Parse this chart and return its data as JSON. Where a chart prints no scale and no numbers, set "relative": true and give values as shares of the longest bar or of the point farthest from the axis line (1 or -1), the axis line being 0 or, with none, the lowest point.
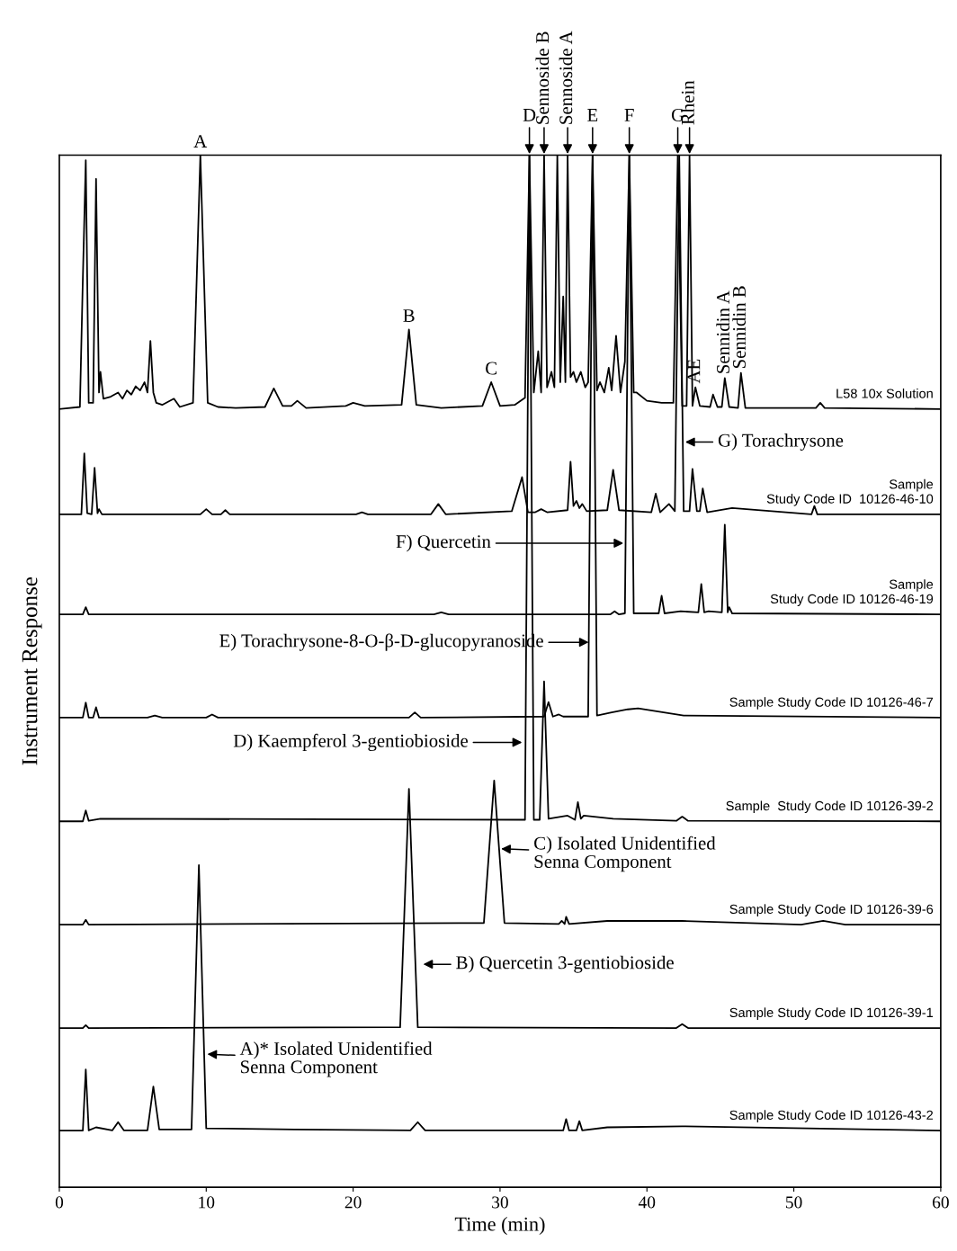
{
  "chart_data": {
    "type": "line",
    "relative": true,
    "xlabel": "Time (min)",
    "ylabel": "Instrument Response",
    "xlim": [
      0,
      60
    ],
    "xticks": [
      0,
      10,
      20,
      30,
      40,
      50,
      60
    ],
    "grid": false,
    "legend": false,
    "marker": "none",
    "line_style": "solid",
    "series": [
      {
        "name": "L58 10x Solution",
        "color": "#000000",
        "x": [
          0,
          1.4,
          1.6,
          1.8,
          2.0,
          2.3,
          2.5,
          2.7,
          2.8,
          3.0,
          3.5,
          4.0,
          4.3,
          4.6,
          4.9,
          5.2,
          5.5,
          5.8,
          6.0,
          6.2,
          6.4,
          6.6,
          7.0,
          7.8,
          8.2,
          9.1,
          9.6,
          10.1,
          10.8,
          12,
          14.0,
          14.6,
          15.2,
          15.8,
          16.2,
          16.8,
          19.5,
          20.0,
          20.8,
          23.3,
          23.8,
          24.3,
          26,
          28.8,
          29.4,
          30.0,
          31.0,
          31.7,
          32.0,
          32.3,
          32.6,
          32.8,
          33.0,
          33.2,
          33.5,
          33.7,
          33.9,
          34.1,
          34.3,
          34.45,
          34.6,
          34.8,
          35.0,
          35.2,
          35.5,
          35.8,
          36.0,
          36.3,
          36.6,
          36.8,
          37.1,
          37.4,
          37.6,
          37.9,
          38.2,
          38.5,
          38.8,
          39.1,
          39.3,
          40,
          41,
          41.8,
          42.1,
          42.4,
          42.7,
          42.9,
          43.1,
          43.3,
          43.6,
          44.3,
          44.5,
          44.8,
          45.1,
          45.3,
          45.6,
          46.2,
          46.4,
          46.7,
          51.5,
          51.8,
          52.1,
          60
        ],
        "values": [
          0.754,
          0.756,
          0.88,
          0.995,
          0.76,
          0.76,
          0.977,
          0.77,
          0.79,
          0.764,
          0.766,
          0.77,
          0.764,
          0.772,
          0.768,
          0.776,
          0.772,
          0.78,
          0.77,
          0.82,
          0.77,
          0.76,
          0.758,
          0.764,
          0.756,
          0.76,
          1.0,
          0.76,
          0.756,
          0.755,
          0.756,
          0.774,
          0.757,
          0.757,
          0.762,
          0.755,
          0.757,
          0.76,
          0.757,
          0.758,
          0.831,
          0.758,
          0.755,
          0.757,
          0.78,
          0.757,
          0.758,
          0.765,
          1.0,
          0.77,
          0.81,
          0.77,
          1.0,
          0.775,
          0.79,
          0.775,
          1.0,
          0.78,
          0.863,
          0.78,
          1.0,
          0.785,
          0.79,
          0.78,
          0.79,
          0.775,
          0.78,
          1.0,
          0.772,
          0.78,
          0.77,
          0.794,
          0.772,
          0.825,
          0.77,
          0.8,
          1.0,
          0.77,
          0.77,
          0.762,
          0.76,
          0.76,
          1.0,
          0.757,
          0.757,
          1.0,
          0.757,
          0.775,
          0.757,
          0.756,
          0.768,
          0.756,
          0.756,
          0.784,
          0.756,
          0.755,
          0.789,
          0.755,
          0.755,
          0.76,
          0.755,
          0.754
        ]
      },
      {
        "name": "Sample\nStudy Code ID  10126-46-10",
        "color": "#000000",
        "x": [
          0,
          1.5,
          1.7,
          1.9,
          2.2,
          2.4,
          2.6,
          2.7,
          2.9,
          9.6,
          10.0,
          10.4,
          11.0,
          11.3,
          11.6,
          20.2,
          20.6,
          21.0,
          25.3,
          25.8,
          26.3,
          30.8,
          31.5,
          31.9,
          32.4,
          32.8,
          33.2,
          34.6,
          34.8,
          35.0,
          35.2,
          35.4,
          35.6,
          35.9,
          37.3,
          37.7,
          38.1,
          40.3,
          40.6,
          40.9,
          41.5,
          41.9,
          42.2,
          42.5,
          42.9,
          43.1,
          43.4,
          43.6,
          43.8,
          44.1,
          45.8,
          51.2,
          51.4,
          51.6,
          60
        ],
        "values": [
          0.652,
          0.652,
          0.711,
          0.653,
          0.652,
          0.697,
          0.653,
          0.657,
          0.652,
          0.652,
          0.657,
          0.652,
          0.652,
          0.656,
          0.652,
          0.652,
          0.654,
          0.652,
          0.652,
          0.662,
          0.652,
          0.655,
          0.688,
          0.654,
          0.654,
          0.657,
          0.654,
          0.656,
          0.703,
          0.66,
          0.665,
          0.658,
          0.662,
          0.655,
          0.656,
          0.695,
          0.656,
          0.654,
          0.672,
          0.654,
          0.662,
          0.655,
          1.0,
          0.655,
          0.655,
          0.696,
          0.655,
          0.655,
          0.677,
          0.654,
          0.658,
          0.652,
          0.66,
          0.652,
          0.652
        ]
      },
      {
        "name": "Sample\nStudy Code ID 10126-46-19",
        "color": "#000000",
        "x": [
          0,
          1.6,
          1.8,
          2.0,
          25.5,
          26,
          26.5,
          37.5,
          37.8,
          38.1,
          38.5,
          38.8,
          39.1,
          40.8,
          41.0,
          41.2,
          42.3,
          43.5,
          43.7,
          43.9,
          44.2,
          45.1,
          45.3,
          45.5,
          45.6,
          45.8,
          60
        ],
        "values": [
          0.555,
          0.555,
          0.562,
          0.555,
          0.555,
          0.557,
          0.555,
          0.555,
          0.558,
          0.555,
          0.556,
          1.0,
          0.556,
          0.556,
          0.573,
          0.556,
          0.558,
          0.557,
          0.5845,
          0.557,
          0.558,
          0.557,
          0.642,
          0.557,
          0.562,
          0.556,
          0.555
        ]
      },
      {
        "name": "Sample Study Code ID 10126-46-7",
        "color": "#000000",
        "x": [
          0,
          1.6,
          1.8,
          2.0,
          2.3,
          2.5,
          2.7,
          6.0,
          6.5,
          7.0,
          10.0,
          10.4,
          10.8,
          23.8,
          24.2,
          24.6,
          33.0,
          33.3,
          33.6,
          34.0,
          34.3,
          36.0,
          36.3,
          36.6,
          37.6,
          38.7,
          39.4,
          42.5,
          60
        ],
        "values": [
          0.455,
          0.455,
          0.4695,
          0.455,
          0.455,
          0.465,
          0.455,
          0.455,
          0.457,
          0.455,
          0.455,
          0.458,
          0.455,
          0.455,
          0.46,
          0.455,
          0.456,
          0.47,
          0.456,
          0.458,
          0.456,
          0.456,
          1.0,
          0.457,
          0.46,
          0.463,
          0.464,
          0.457,
          0.455
        ]
      },
      {
        "name": "Sample  Study Code ID 10126-39-2",
        "color": "#000000",
        "x": [
          0,
          1.6,
          1.8,
          2.0,
          2.8,
          31.7,
          32.0,
          32.3,
          32.7,
          33.0,
          33.3,
          34.6,
          35.1,
          35.3,
          35.5,
          35.7,
          37.7,
          42.0,
          42.4,
          42.8,
          60
        ],
        "values": [
          0.3545,
          0.3545,
          0.365,
          0.355,
          0.357,
          0.356,
          1.0,
          0.356,
          0.356,
          0.49,
          0.357,
          0.36,
          0.356,
          0.373,
          0.357,
          0.36,
          0.357,
          0.355,
          0.359,
          0.355,
          0.3545
        ]
      },
      {
        "name": "Sample Study Code ID 10126-39-6",
        "color": "#000000",
        "x": [
          0,
          1.6,
          1.8,
          2.0,
          28.9,
          29.6,
          30.3,
          34.0,
          34.2,
          34.4,
          34.5,
          34.7,
          37.3,
          42.4,
          50.5,
          52,
          53.5,
          60
        ],
        "values": [
          0.2544,
          0.2544,
          0.259,
          0.2544,
          0.256,
          0.394,
          0.256,
          0.255,
          0.258,
          0.255,
          0.262,
          0.255,
          0.258,
          0.258,
          0.2544,
          0.258,
          0.2544,
          0.2544
        ]
      },
      {
        "name": "Sample Study Code ID 10126-39-1",
        "color": "#000000",
        "x": [
          0,
          1.6,
          1.8,
          2.0,
          23.2,
          23.8,
          24.4,
          42.0,
          42.4,
          42.8,
          60
        ],
        "values": [
          0.1542,
          0.1542,
          0.157,
          0.1542,
          0.155,
          0.386,
          0.155,
          0.1542,
          0.158,
          0.1542,
          0.1542
        ]
      },
      {
        "name": "Sample Study Code ID 10126-43-2",
        "color": "#000000",
        "x": [
          0,
          1.6,
          1.8,
          2.0,
          2.5,
          3.6,
          4.0,
          4.4,
          6.0,
          6.4,
          6.8,
          9.0,
          9.5,
          10.0,
          16,
          23.9,
          24.4,
          24.9,
          34.3,
          34.5,
          34.7,
          35.2,
          35.4,
          35.6,
          37.3,
          42.4,
          60
        ],
        "values": [
          0.0549,
          0.0549,
          0.114,
          0.055,
          0.058,
          0.055,
          0.063,
          0.055,
          0.055,
          0.0976,
          0.056,
          0.056,
          0.312,
          0.057,
          0.056,
          0.055,
          0.063,
          0.055,
          0.055,
          0.066,
          0.055,
          0.055,
          0.064,
          0.055,
          0.058,
          0.059,
          0.0549
        ]
      }
    ],
    "annotations": [
      {
        "text": "A",
        "x": 9.6,
        "y": 1.0
      },
      {
        "text": "B",
        "x": 23.8,
        "y": 0.831
      },
      {
        "text": "C",
        "x": 29.4,
        "y": 0.78
      },
      {
        "text": "AE",
        "x": 43.3,
        "y": 0.775
      },
      {
        "text": "Sennidin A",
        "x": 45.3,
        "y": 0.784
      },
      {
        "text": "Sennidin B",
        "x": 46.4,
        "y": 0.789
      },
      {
        "text": "D",
        "x": 32.0,
        "y": 1.0
      },
      {
        "text": "Sennoside B",
        "x": 33.0,
        "y": 1.0
      },
      {
        "text": "Sennoside A",
        "x": 34.6,
        "y": 1.0
      },
      {
        "text": "E",
        "x": 36.3,
        "y": 1.0
      },
      {
        "text": "F",
        "x": 38.8,
        "y": 1.0
      },
      {
        "text": "G",
        "x": 42.1,
        "y": 1.0
      },
      {
        "text": "Rhein",
        "x": 42.9,
        "y": 1.0
      },
      {
        "text": "G) Torachrysone",
        "x": 42.44,
        "y": 0.722
      },
      {
        "text": "F) Quercetin",
        "x": 38.4,
        "y": 0.624
      },
      {
        "text": "E) Torachrysone-8-O-β-D-glucopyranoside",
        "x": 36.04,
        "y": 0.528
      },
      {
        "text": "D) Kaempferol 3-gentiobioside",
        "x": 31.5,
        "y": 0.431
      },
      {
        "text": "C) Isolated Unidentified\nSenna Component",
        "x": 29.9,
        "y": 0.328
      },
      {
        "text": "B) Quercetin 3-gentiobioside",
        "x": 24.6,
        "y": 0.216
      },
      {
        "text": "A)* Isolated Unidentified\nSenna Component",
        "x": 9.9,
        "y": 0.129
      }
    ]
  }
}
